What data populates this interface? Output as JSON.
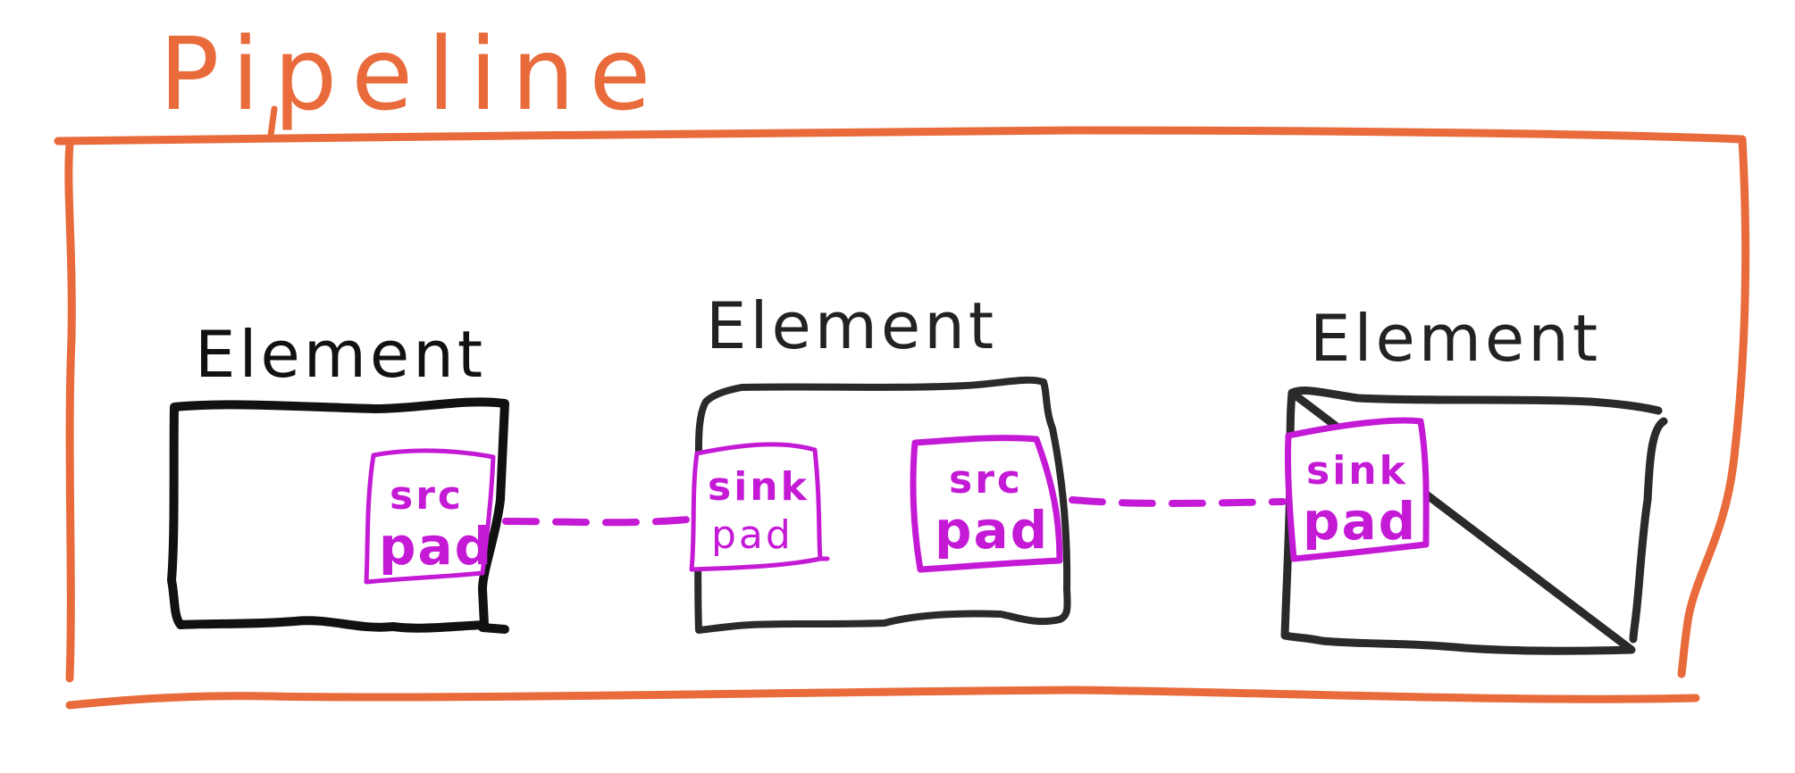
{
  "colors": {
    "pipeline": "#e96a3a",
    "element": "#222222",
    "pad": "#c41ad6"
  },
  "pipeline": {
    "label": "Pipeline"
  },
  "elements": [
    {
      "label": "Element",
      "pads": [
        {
          "kind": "src",
          "line1": "src",
          "line2": "pad"
        }
      ]
    },
    {
      "label": "Element",
      "pads": [
        {
          "kind": "sink",
          "line1": "sink",
          "line2": "pad"
        },
        {
          "kind": "src",
          "line1": "src",
          "line2": "pad"
        }
      ]
    },
    {
      "label": "Element",
      "pads": [
        {
          "kind": "sink",
          "line1": "sink",
          "line2": "pad"
        }
      ]
    }
  ],
  "links": [
    {
      "from": "element-1-src-pad",
      "to": "element-2-sink-pad"
    },
    {
      "from": "element-2-src-pad",
      "to": "element-3-sink-pad"
    }
  ]
}
